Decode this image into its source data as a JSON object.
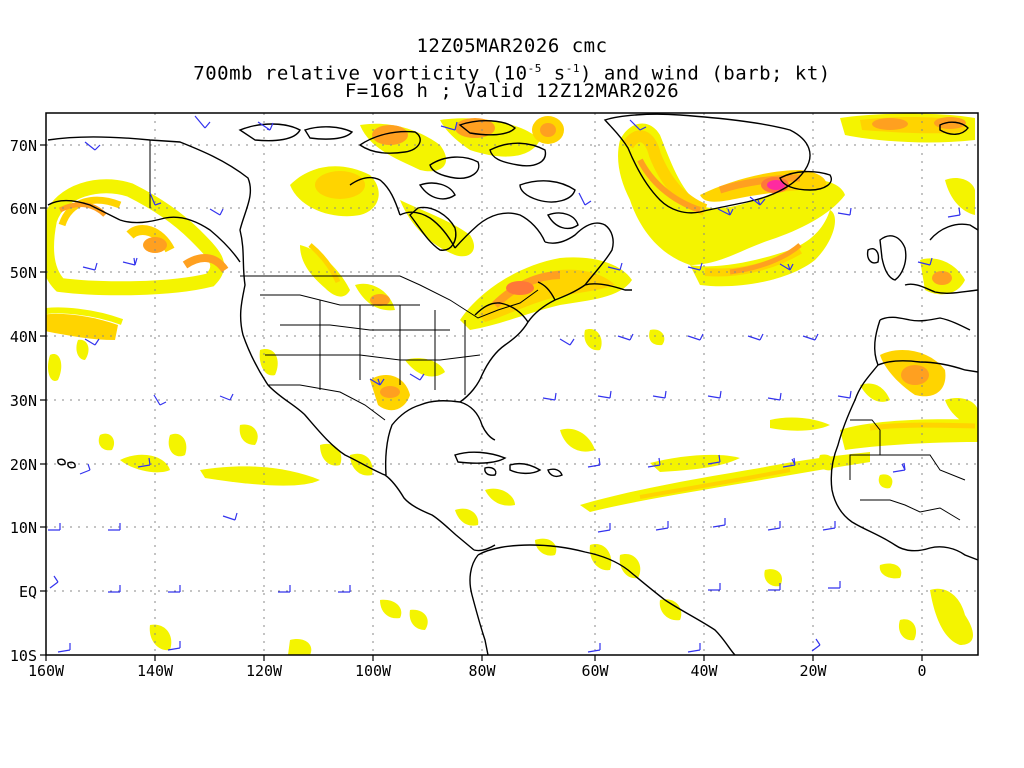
{
  "header": {
    "line1": "12Z05MAR2026 cmc",
    "line2_pre": "700mb relative vorticity (10",
    "line2_exp1": "-5",
    "line2_mid": " s",
    "line2_exp2": "-1",
    "line2_post": ") and wind (barb; kt)",
    "line3": "F=168 h ; Valid 12Z12MAR2026"
  },
  "axes": {
    "lat_labels": [
      "70N",
      "60N",
      "50N",
      "40N",
      "30N",
      "20N",
      "10N",
      "EQ",
      "10S"
    ],
    "lon_labels": [
      "160W",
      "140W",
      "120W",
      "100W",
      "80W",
      "60W",
      "40W",
      "20W",
      "0"
    ]
  },
  "colors": {
    "vort_light": "#f4f400",
    "vort_low": "#ffd400",
    "vort_mid": "#ffa020",
    "vort_high": "#ff7838",
    "vort_max": "#ff2aa0",
    "barb": "#3333ee",
    "coast": "#000000",
    "grid": "#888888"
  }
}
